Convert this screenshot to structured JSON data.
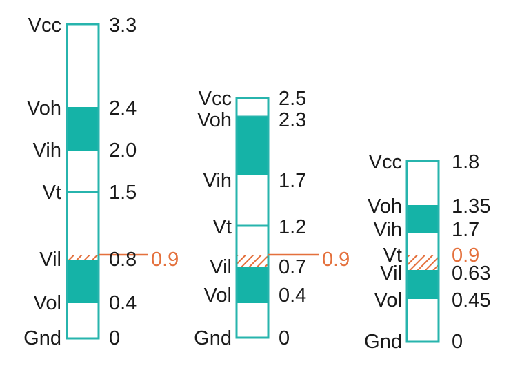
{
  "colors": {
    "outline": "#27b4ad",
    "band": "#15b3a7",
    "threshold": "#e4703c",
    "hatch": "#e4703c",
    "text": "#1a1a1a"
  },
  "columns": [
    {
      "levels": [
        {
          "name": "Vcc",
          "value": "3.3"
        },
        {
          "name": "Voh",
          "value": "2.4"
        },
        {
          "name": "Vih",
          "value": "2.0"
        },
        {
          "name": "Vt",
          "value": "1.5"
        },
        {
          "name": "Vil",
          "value": "0.8"
        },
        {
          "name": "Vol",
          "value": "0.4"
        },
        {
          "name": "Gnd",
          "value": "0"
        }
      ],
      "threshold": "0.9"
    },
    {
      "levels": [
        {
          "name": "Vcc",
          "value": "2.5"
        },
        {
          "name": "Voh",
          "value": "2.3"
        },
        {
          "name": "Vih",
          "value": "1.7"
        },
        {
          "name": "Vt",
          "value": "1.2"
        },
        {
          "name": "Vil",
          "value": "0.7"
        },
        {
          "name": "Vol",
          "value": "0.4"
        },
        {
          "name": "Gnd",
          "value": "0"
        }
      ],
      "threshold": "0.9"
    },
    {
      "levels": [
        {
          "name": "Vcc",
          "value": "1.8"
        },
        {
          "name": "Voh",
          "value": "1.35"
        },
        {
          "name": "Vih",
          "value": "1.7"
        },
        {
          "name": "Vt",
          "value": "0.9"
        },
        {
          "name": "Vil",
          "value": "0.63"
        },
        {
          "name": "Vol",
          "value": "0.45"
        },
        {
          "name": "Gnd",
          "value": "0"
        }
      ],
      "threshold": ""
    }
  ]
}
